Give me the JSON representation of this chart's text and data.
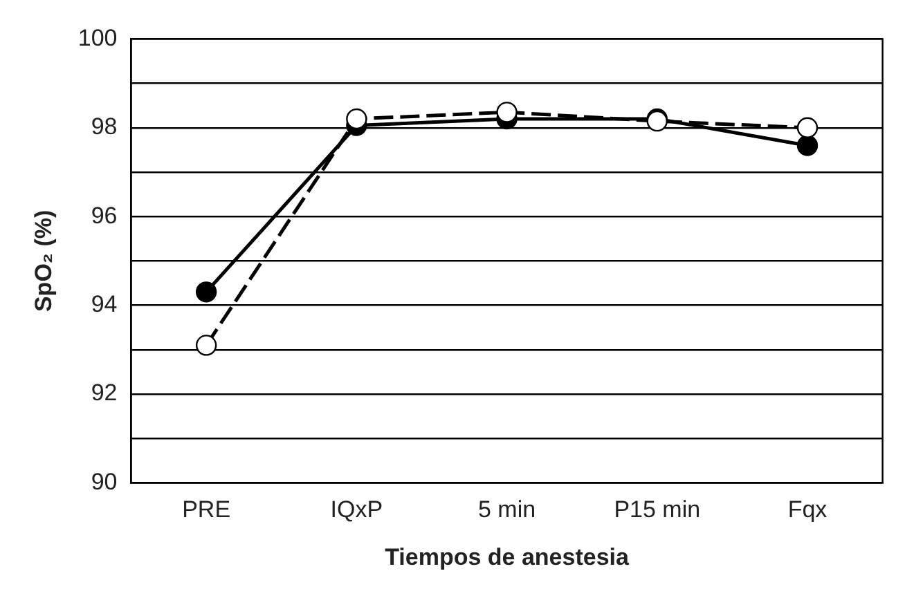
{
  "chart_data": {
    "type": "line",
    "xlabel": "Tiempos de anestesia",
    "ylabel": "SpO₂ (%)",
    "categories": [
      "PRE",
      "IQxP",
      "5 min",
      "P15 min",
      "Fqx"
    ],
    "series": [
      {
        "color": "#000000",
        "line_style": "solid",
        "values": [
          94.3,
          98.05,
          98.2,
          98.2,
          97.6
        ]
      },
      {
        "color": "#000000",
        "line_style": "dashed",
        "values": [
          93.1,
          98.2,
          98.35,
          98.15,
          98.0
        ]
      }
    ],
    "ylim": [
      90,
      100
    ],
    "yticks": [
      90,
      {
        "value": 91,
        "label": null
      },
      92,
      {
        "value": 93,
        "label": null
      },
      94,
      {
        "value": 95,
        "label": null
      },
      96,
      {
        "value": 97,
        "label": null
      },
      98,
      {
        "value": 99,
        "label": null
      },
      100
    ],
    "grid": "y",
    "legend": false,
    "marker": "circle"
  }
}
